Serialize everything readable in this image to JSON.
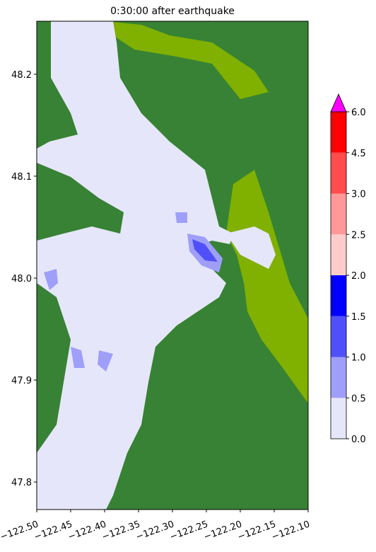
{
  "map": {
    "title": "0:30:00 after earthquake",
    "xlim": [
      -122.5,
      -122.1
    ],
    "ylim": [
      47.773,
      48.252
    ],
    "xticks": [
      {
        "value": -122.5,
        "label": "−122.50"
      },
      {
        "value": -122.45,
        "label": "−122.45"
      },
      {
        "value": -122.4,
        "label": "−122.40"
      },
      {
        "value": -122.35,
        "label": "−122.35"
      },
      {
        "value": -122.3,
        "label": "−122.30"
      },
      {
        "value": -122.25,
        "label": "−122.25"
      },
      {
        "value": -122.2,
        "label": "−122.20"
      },
      {
        "value": -122.15,
        "label": "−122.15"
      },
      {
        "value": -122.1,
        "label": "−122.10"
      }
    ],
    "yticks": [
      {
        "value": 47.8,
        "label": "47.8"
      },
      {
        "value": 47.9,
        "label": "47.9"
      },
      {
        "value": 48.0,
        "label": "48.0"
      },
      {
        "value": 48.1,
        "label": "48.1"
      },
      {
        "value": 48.2,
        "label": "48.2"
      }
    ],
    "colorbar": {
      "ticks": [
        {
          "value": 0,
          "label": "0.0"
        },
        0.5,
        {
          "value": 1,
          "label": "1.0"
        },
        1.5,
        {
          "value": 2,
          "label": "2.0"
        },
        2.5,
        {
          "value": 3,
          "label": "3.0"
        },
        4.5,
        {
          "value": 6,
          "label": "6.0"
        }
      ],
      "colors": [
        "#e6e6fa",
        "#9f9ffa",
        "#5050fa",
        "#0000ff",
        "#ffcccc",
        "#ff9999",
        "#ff4c4c",
        "#ff0000"
      ],
      "extend_color": "#ff00ff"
    }
  }
}
